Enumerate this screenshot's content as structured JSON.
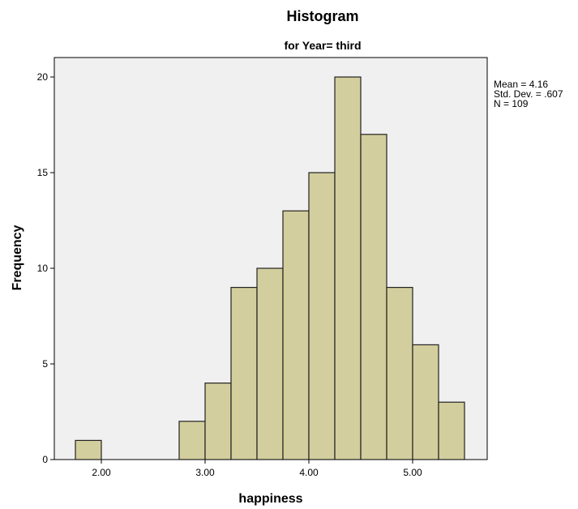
{
  "chart_data": {
    "type": "bar",
    "title": "Histogram",
    "subtitle": "for Year= third",
    "xlabel": "happiness",
    "ylabel": "Frequency",
    "xlim": [
      1.5,
      5.7
    ],
    "ylim": [
      0,
      21
    ],
    "x_ticks": [
      2.0,
      3.0,
      4.0,
      5.0
    ],
    "x_tick_labels": [
      "2.00",
      "3.00",
      "4.00",
      "5.00"
    ],
    "y_ticks": [
      0,
      5,
      10,
      15,
      20
    ],
    "y_tick_labels": [
      "0",
      "5",
      "10",
      "15",
      "20"
    ],
    "bin_width": 0.25,
    "bins": [
      {
        "start": 1.75,
        "count": 1
      },
      {
        "start": 2.75,
        "count": 2
      },
      {
        "start": 3.0,
        "count": 4
      },
      {
        "start": 3.25,
        "count": 9
      },
      {
        "start": 3.5,
        "count": 10
      },
      {
        "start": 3.75,
        "count": 13
      },
      {
        "start": 4.0,
        "count": 15
      },
      {
        "start": 4.25,
        "count": 20
      },
      {
        "start": 4.5,
        "count": 17
      },
      {
        "start": 4.75,
        "count": 9
      },
      {
        "start": 5.0,
        "count": 6
      },
      {
        "start": 5.25,
        "count": 3
      }
    ],
    "stats": [
      "Mean = 4.16",
      "Std. Dev. = .607",
      "N = 109"
    ],
    "grid": false,
    "colors": {
      "bar_fill": "#d3ce9d",
      "bar_stroke": "#222222",
      "plot_bg": "#f0f0f0"
    }
  }
}
